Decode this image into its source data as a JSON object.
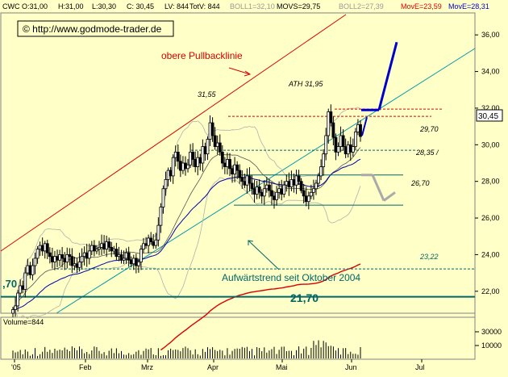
{
  "header": {
    "symbol": "CWC",
    "open": "O:31,00",
    "high": "H:31,00",
    "low": "L:30,30",
    "close": "C: 30,45",
    "lv": "LV: 844",
    "totv": "TotV: 844",
    "boll1": "BOLL1=32,10",
    "movs": "MOVS=29,75",
    "boll2": "BOLL2=27,39",
    "move1": "MovE=23,59",
    "move2": "MovE=28,31"
  },
  "watermark": "© http://www.godmode-trader.de",
  "annotations": {
    "pullback": "obere Pullbacklinie",
    "ath": "ATH 31,95",
    "high_label": "31,55",
    "level_2970": "29,70",
    "level_2835": "28,35 /",
    "level_2670": "26,70",
    "level_2322": "23,22",
    "trend": "Aufwärtstrend seit Oktober 2004",
    "level_2170": "21,70",
    "left_2170": ",70",
    "last_price": "30,45"
  },
  "volume_panel": {
    "label": "Volume=844",
    "ticks": [
      "30000",
      "10000"
    ]
  },
  "colors": {
    "background": "#ffffc8",
    "candle": "#000000",
    "pullback_line": "#dd0000",
    "trend_line": "#009999",
    "ema_fast": "#0000aa",
    "ema_slow": "#dd0000",
    "bollinger": "#b0b0b0",
    "support_teal": "#006666",
    "forecast_up": "#0000cc",
    "forecast_down": "#aaaaaa"
  },
  "chart_data": {
    "type": "candlestick",
    "x_labels": [
      "'05",
      "Feb",
      "Mrz",
      "Apr",
      "Mai",
      "Jun",
      "Jul"
    ],
    "y_ticks": [
      22,
      24,
      26,
      28,
      30,
      32,
      34,
      36
    ],
    "ylim": [
      20.8,
      37.2
    ],
    "last_close": 30.45,
    "levels": [
      {
        "value": 31.95,
        "label": "ATH 31,95",
        "color": "#dd0000",
        "style": "dashed"
      },
      {
        "value": 31.55,
        "label": "31,55",
        "color": "#dd0000",
        "style": "dashed"
      },
      {
        "value": 29.7,
        "label": "29,70",
        "color": "#006666",
        "style": "dashed"
      },
      {
        "value": 28.35,
        "label": "28,35",
        "color": "#006666",
        "style": "solid"
      },
      {
        "value": 26.7,
        "label": "26,70",
        "color": "#006666",
        "style": "solid"
      },
      {
        "value": 23.22,
        "label": "23,22",
        "color": "#006666",
        "style": "dashed"
      },
      {
        "value": 21.7,
        "label": "21,70",
        "color": "#006666",
        "style": "solid"
      }
    ],
    "closes": [
      21.0,
      21.2,
      21.9,
      22.3,
      22.1,
      23.0,
      23.4,
      22.9,
      23.4,
      23.8,
      24.3,
      24.5,
      24.2,
      24.6,
      24.1,
      23.9,
      23.6,
      23.9,
      23.7,
      24.0,
      23.8,
      23.6,
      24.0,
      23.9,
      23.4,
      23.5,
      23.3,
      23.6,
      23.9,
      24.1,
      23.8,
      24.2,
      24.5,
      24.2,
      24.3,
      24.4,
      24.6,
      24.3,
      24.7,
      24.4,
      24.2,
      24.3,
      23.9,
      24.0,
      23.7,
      23.8,
      24.1,
      23.7,
      23.5,
      23.8,
      23.4,
      23.6,
      24.3,
      24.6,
      24.5,
      24.9,
      24.7,
      24.5,
      24.8,
      25.6,
      26.6,
      27.6,
      28.1,
      28.6,
      28.3,
      29.3,
      29.6,
      29.1,
      28.6,
      29.0,
      28.7,
      28.9,
      29.6,
      29.2,
      28.8,
      29.3,
      29.0,
      29.9,
      29.5,
      30.3,
      31.2,
      30.5,
      29.9,
      30.1,
      29.6,
      29.0,
      28.8,
      29.2,
      28.7,
      28.4,
      28.9,
      28.6,
      28.2,
      28.0,
      27.8,
      28.3,
      27.9,
      27.6,
      27.3,
      27.7,
      27.4,
      27.2,
      27.6,
      27.8,
      27.5,
      27.2,
      27.0,
      27.4,
      27.6,
      27.3,
      27.8,
      28.0,
      27.7,
      28.1,
      27.8,
      28.3,
      28.0,
      27.5,
      27.2,
      26.9,
      27.2,
      27.4,
      27.6,
      27.9,
      28.3,
      28.8,
      29.5,
      30.5,
      31.8,
      31.2,
      30.4,
      29.6,
      29.9,
      30.5,
      29.9,
      29.5,
      30.0,
      29.6,
      29.9,
      30.7,
      31.1,
      30.45
    ],
    "forecast_up": [
      [
        31.9,
        31.9
      ],
      [
        31.9,
        35.6
      ]
    ],
    "forecast_down": [
      [
        28.35,
        28.35
      ],
      [
        28.35,
        26.95
      ],
      [
        26.95,
        27.4
      ]
    ],
    "volume_ticks": [
      30000,
      10000
    ]
  }
}
